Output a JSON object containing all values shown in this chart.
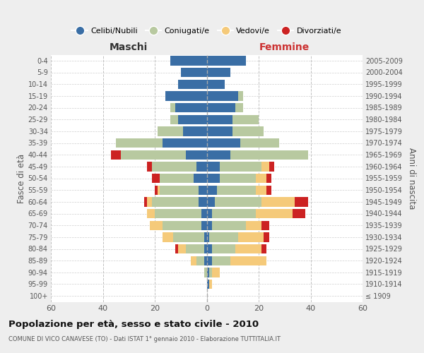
{
  "age_groups": [
    "100+",
    "95-99",
    "90-94",
    "85-89",
    "80-84",
    "75-79",
    "70-74",
    "65-69",
    "60-64",
    "55-59",
    "50-54",
    "45-49",
    "40-44",
    "35-39",
    "30-34",
    "25-29",
    "20-24",
    "15-19",
    "10-14",
    "5-9",
    "0-4"
  ],
  "birth_years": [
    "≤ 1909",
    "1910-1914",
    "1915-1919",
    "1920-1924",
    "1925-1929",
    "1930-1934",
    "1935-1939",
    "1940-1944",
    "1945-1949",
    "1950-1954",
    "1955-1959",
    "1960-1964",
    "1965-1969",
    "1970-1974",
    "1975-1979",
    "1980-1984",
    "1985-1989",
    "1990-1994",
    "1995-1999",
    "2000-2004",
    "2005-2009"
  ],
  "colors": {
    "celibi": "#3a6ea5",
    "coniugati": "#b8c9a0",
    "vedovi": "#f5ca7a",
    "divorziati": "#cc2222"
  },
  "male": {
    "celibi": [
      0,
      0,
      0,
      1,
      1,
      1,
      2,
      2,
      3,
      3,
      5,
      4,
      8,
      17,
      9,
      11,
      12,
      16,
      11,
      10,
      14
    ],
    "coniugati": [
      0,
      0,
      1,
      3,
      7,
      12,
      15,
      18,
      18,
      15,
      13,
      17,
      25,
      18,
      10,
      3,
      2,
      0,
      0,
      0,
      0
    ],
    "vedovi": [
      0,
      0,
      0,
      2,
      3,
      4,
      5,
      3,
      2,
      1,
      0,
      0,
      0,
      0,
      0,
      0,
      0,
      0,
      0,
      0,
      0
    ],
    "divorziati": [
      0,
      0,
      0,
      0,
      1,
      0,
      0,
      0,
      1,
      1,
      3,
      2,
      4,
      0,
      0,
      0,
      0,
      0,
      0,
      0,
      0
    ]
  },
  "female": {
    "celibi": [
      0,
      1,
      1,
      2,
      2,
      1,
      2,
      2,
      3,
      4,
      5,
      5,
      9,
      13,
      10,
      10,
      11,
      12,
      7,
      9,
      15
    ],
    "coniugati": [
      0,
      0,
      1,
      7,
      9,
      11,
      13,
      17,
      18,
      15,
      14,
      16,
      30,
      15,
      12,
      10,
      3,
      2,
      0,
      0,
      0
    ],
    "vedovi": [
      0,
      1,
      3,
      14,
      10,
      10,
      6,
      14,
      13,
      4,
      4,
      3,
      0,
      0,
      0,
      0,
      0,
      0,
      0,
      0,
      0
    ],
    "divorziati": [
      0,
      0,
      0,
      0,
      2,
      2,
      3,
      5,
      5,
      2,
      2,
      2,
      0,
      0,
      0,
      0,
      0,
      0,
      0,
      0,
      0
    ]
  },
  "xlim": 60,
  "title": "Popolazione per età, sesso e stato civile - 2010",
  "subtitle": "COMUNE DI VICO CANAVESE (TO) - Dati ISTAT 1° gennaio 2010 - Elaborazione TUTTITALIA.IT",
  "ylabel_left": "Fasce di età",
  "ylabel_right": "Anni di nascita",
  "legend_labels": [
    "Celibi/Nubili",
    "Coniugati/e",
    "Vedovi/e",
    "Divorziati/e"
  ],
  "background_color": "#eeeeee",
  "plot_background": "#ffffff",
  "grid_color": "#bbbbbb",
  "maschi_color": "#333333",
  "femmine_color": "#cc3333"
}
